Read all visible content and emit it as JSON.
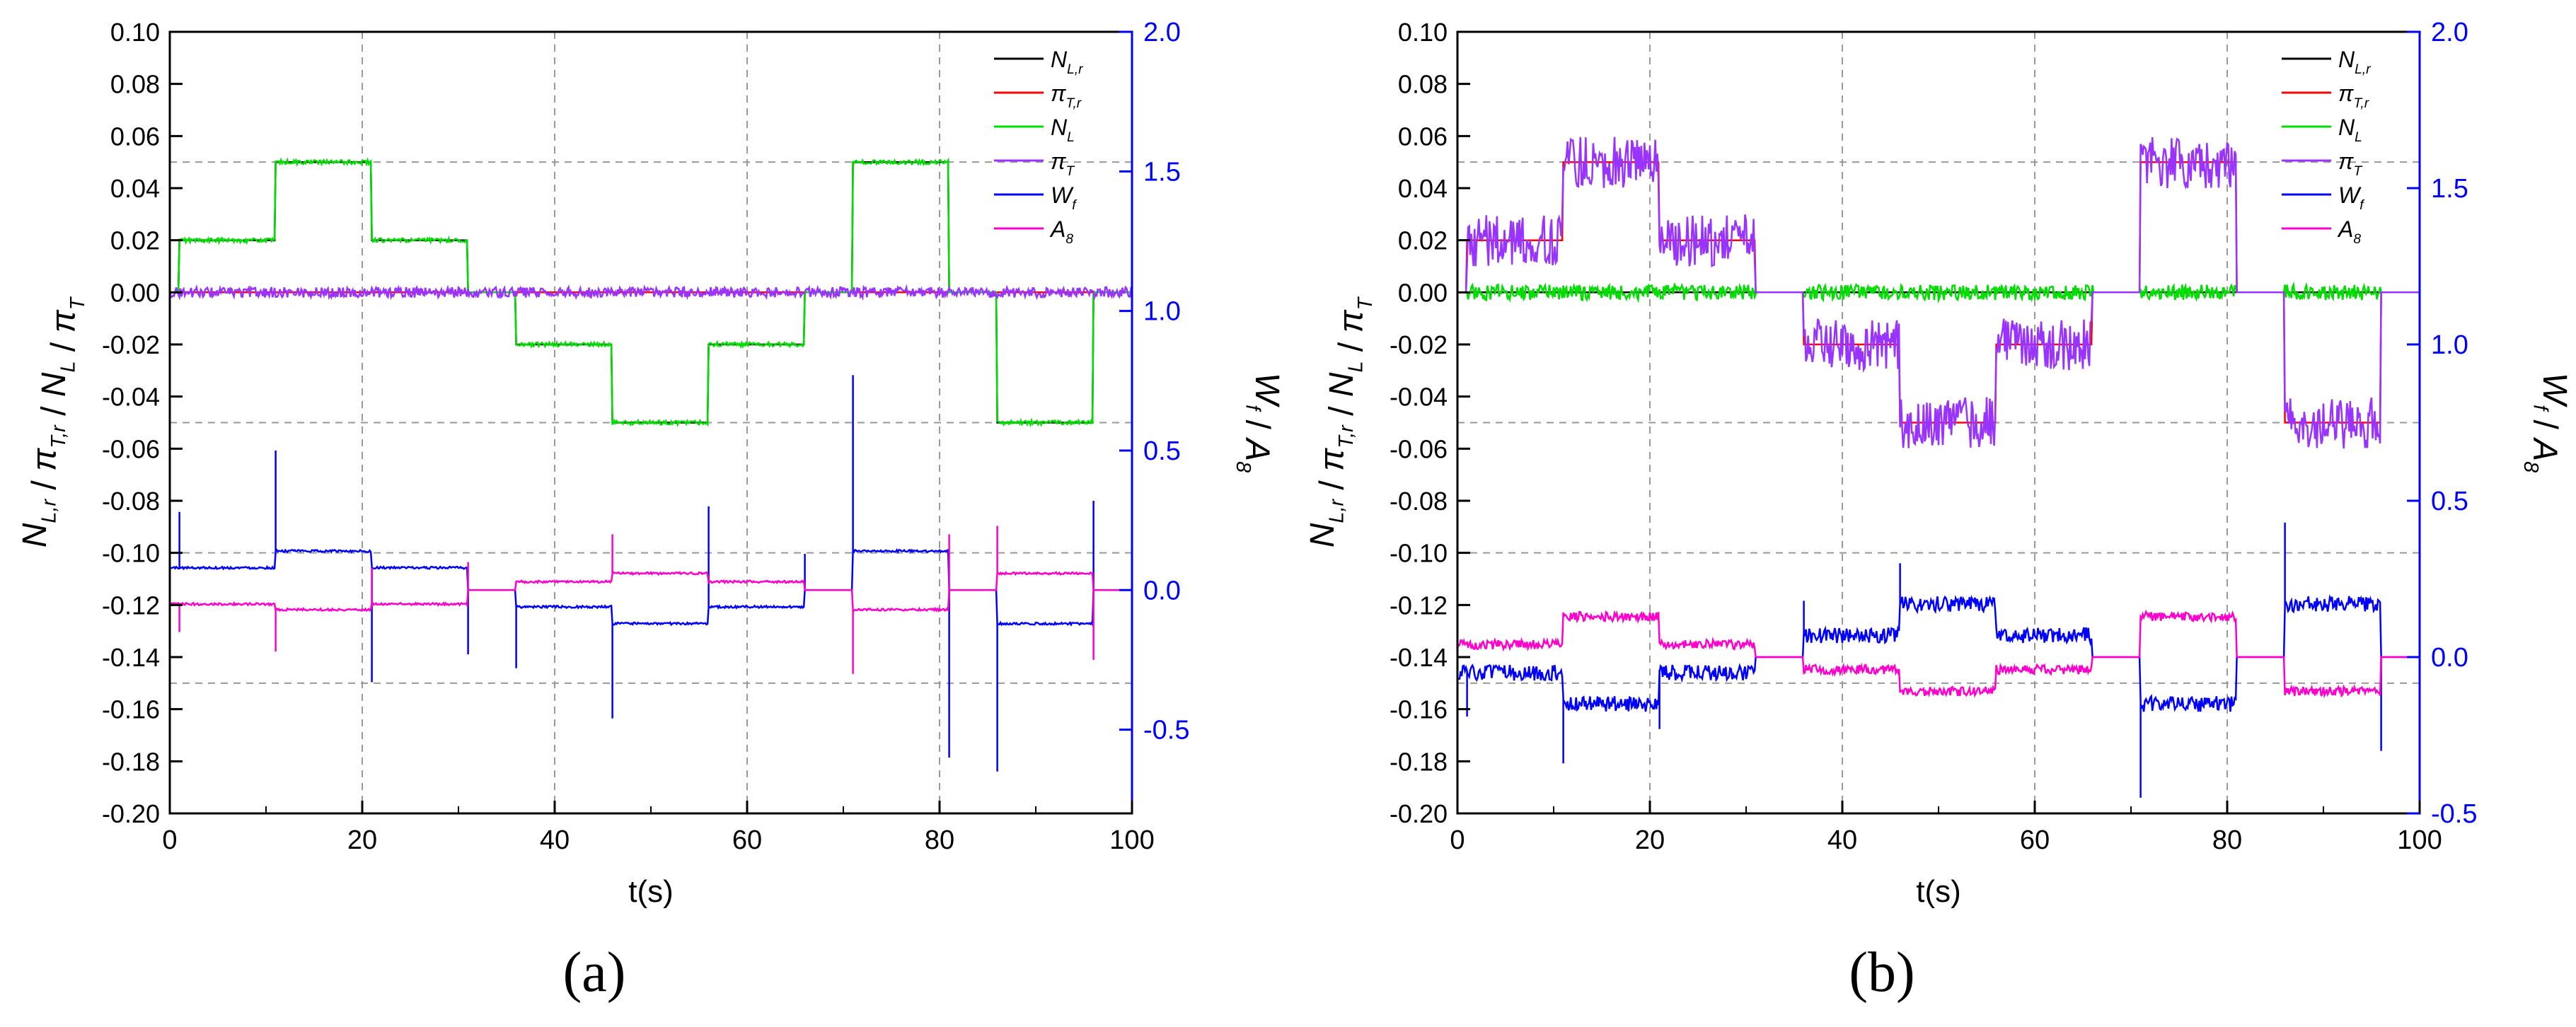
{
  "chart_data": [
    {
      "type": "line",
      "panel": "(a)",
      "xlabel": "t(s)",
      "ylabel_left": "N_L,r / π_T,r / N_L / π_T",
      "ylabel_right": "W_f / A_8",
      "xlim": [
        0,
        100
      ],
      "ylim_left": [
        -0.2,
        0.1
      ],
      "ylim_right": [
        -0.8,
        2.0
      ],
      "x_ticks": [
        "0",
        "20",
        "40",
        "60",
        "80",
        "100"
      ],
      "y_ticks_left": [
        "0.10",
        "0.08",
        "0.06",
        "0.04",
        "0.02",
        "0.00",
        "-0.02",
        "-0.04",
        "-0.06",
        "-0.08",
        "-0.10",
        "-0.12",
        "-0.14",
        "-0.16",
        "-0.18",
        "-0.20"
      ],
      "y_ticks_right": [
        "2.0",
        "1.5",
        "1.0",
        "0.5",
        "0.0",
        "-0.5"
      ],
      "grid": true,
      "legend_position": "top-right",
      "series": [
        {
          "name": "N_L,r",
          "axis": "left",
          "color": "#000000",
          "noise": 0,
          "steps": [
            [
              0,
              0
            ],
            [
              1,
              0.02
            ],
            [
              11,
              0.05
            ],
            [
              21,
              0.02
            ],
            [
              31,
              0
            ],
            [
              36,
              -0.02
            ],
            [
              46,
              -0.05
            ],
            [
              56,
              -0.02
            ],
            [
              66,
              0
            ],
            [
              71,
              0.05
            ],
            [
              81,
              0
            ],
            [
              86,
              -0.05
            ],
            [
              96,
              0
            ]
          ]
        },
        {
          "name": "π_T,r",
          "axis": "left",
          "color": "#ff0000",
          "noise": 0,
          "steps": [
            [
              0,
              0
            ],
            [
              100,
              0
            ]
          ]
        },
        {
          "name": "N_L",
          "axis": "left",
          "color": "#00dd00",
          "noise": 0.0008,
          "steps": [
            [
              0,
              0
            ],
            [
              1,
              0.02
            ],
            [
              11,
              0.05
            ],
            [
              21,
              0.02
            ],
            [
              31,
              0
            ],
            [
              36,
              -0.02
            ],
            [
              46,
              -0.05
            ],
            [
              56,
              -0.02
            ],
            [
              66,
              0
            ],
            [
              71,
              0.05
            ],
            [
              81,
              0
            ],
            [
              86,
              -0.05
            ],
            [
              96,
              0
            ]
          ]
        },
        {
          "name": "π_T",
          "axis": "left",
          "color": "#9933ff",
          "noise": 0.002,
          "steps": [
            [
              0,
              0
            ],
            [
              100,
              0
            ]
          ]
        },
        {
          "name": "W_f",
          "axis": "right",
          "color": "#0000ff",
          "noise": 0.004,
          "steps": [
            [
              0,
              0.08
            ],
            [
              11,
              0.14
            ],
            [
              21,
              0.08
            ],
            [
              31,
              0
            ],
            [
              36,
              -0.06
            ],
            [
              46,
              -0.12
            ],
            [
              56,
              -0.06
            ],
            [
              66,
              0
            ],
            [
              71,
              0.14
            ],
            [
              81,
              0
            ],
            [
              86,
              -0.12
            ],
            [
              96,
              0
            ]
          ],
          "spikes": [
            [
              1,
              0.28
            ],
            [
              11,
              0.5
            ],
            [
              21,
              -0.33
            ],
            [
              31,
              -0.23
            ],
            [
              36,
              -0.28
            ],
            [
              46,
              -0.46
            ],
            [
              56,
              0.3
            ],
            [
              66,
              0.13
            ],
            [
              71,
              0.77
            ],
            [
              81,
              -0.6
            ],
            [
              86,
              -0.65
            ],
            [
              96,
              0.32
            ]
          ]
        },
        {
          "name": "A_8",
          "axis": "right",
          "color": "#ff00cc",
          "noise": 0.004,
          "steps": [
            [
              0,
              -0.05
            ],
            [
              11,
              -0.07
            ],
            [
              21,
              -0.05
            ],
            [
              31,
              0
            ],
            [
              36,
              0.03
            ],
            [
              46,
              0.06
            ],
            [
              56,
              0.03
            ],
            [
              66,
              0
            ],
            [
              71,
              -0.07
            ],
            [
              81,
              0
            ],
            [
              86,
              0.06
            ],
            [
              96,
              0
            ]
          ],
          "spikes": [
            [
              1,
              -0.15
            ],
            [
              11,
              -0.22
            ],
            [
              21,
              0.08
            ],
            [
              31,
              0.1
            ],
            [
              46,
              0.2
            ],
            [
              71,
              -0.3
            ],
            [
              81,
              0.2
            ],
            [
              86,
              0.23
            ],
            [
              96,
              -0.25
            ]
          ]
        }
      ]
    },
    {
      "type": "line",
      "panel": "(b)",
      "xlabel": "t(s)",
      "ylabel_left": "N_L,r / π_T,r / N_L / π_T",
      "ylabel_right": "W_f / A_8",
      "xlim": [
        0,
        100
      ],
      "ylim_left": [
        -0.2,
        0.1
      ],
      "ylim_right": [
        -0.5,
        2.0
      ],
      "x_ticks": [
        "0",
        "20",
        "40",
        "60",
        "80",
        "100"
      ],
      "y_ticks_left": [
        "0.10",
        "0.08",
        "0.06",
        "0.04",
        "0.02",
        "0.00",
        "-0.02",
        "-0.04",
        "-0.06",
        "-0.08",
        "-0.10",
        "-0.12",
        "-0.14",
        "-0.16",
        "-0.18",
        "-0.20"
      ],
      "y_ticks_right": [
        "2.0",
        "1.5",
        "1.0",
        "0.5",
        "0.0",
        "-0.5"
      ],
      "grid": true,
      "legend_position": "top-right",
      "series": [
        {
          "name": "N_L,r",
          "axis": "left",
          "color": "#000000",
          "noise": 0,
          "steps": [
            [
              0,
              0
            ],
            [
              100,
              0
            ]
          ]
        },
        {
          "name": "π_T,r",
          "axis": "left",
          "color": "#ff0000",
          "noise": 0,
          "steps": [
            [
              0,
              0
            ],
            [
              1,
              0.02
            ],
            [
              11,
              0.05
            ],
            [
              21,
              0.02
            ],
            [
              31,
              0
            ],
            [
              36,
              -0.02
            ],
            [
              46,
              -0.05
            ],
            [
              56,
              -0.02
            ],
            [
              66,
              0
            ],
            [
              71,
              0.05
            ],
            [
              81,
              0
            ],
            [
              86,
              -0.05
            ],
            [
              96,
              0
            ]
          ]
        },
        {
          "name": "N_L",
          "axis": "left",
          "color": "#00dd00",
          "noise": 0.003,
          "steps": [
            [
              0,
              0
            ],
            [
              100,
              0
            ]
          ]
        },
        {
          "name": "π_T",
          "axis": "left",
          "color": "#9933ff",
          "noise": 0.01,
          "steps": [
            [
              0,
              0
            ],
            [
              1,
              0.02
            ],
            [
              11,
              0.05
            ],
            [
              21,
              0.02
            ],
            [
              31,
              0
            ],
            [
              36,
              -0.02
            ],
            [
              46,
              -0.05
            ],
            [
              56,
              -0.02
            ],
            [
              66,
              0
            ],
            [
              71,
              0.05
            ],
            [
              81,
              0
            ],
            [
              86,
              -0.05
            ],
            [
              96,
              0
            ]
          ]
        },
        {
          "name": "W_f",
          "axis": "right",
          "color": "#0000ff",
          "noise": 0.025,
          "steps": [
            [
              0,
              -0.05
            ],
            [
              11,
              -0.15
            ],
            [
              21,
              -0.05
            ],
            [
              31,
              0
            ],
            [
              36,
              0.07
            ],
            [
              46,
              0.17
            ],
            [
              56,
              0.07
            ],
            [
              66,
              0
            ],
            [
              71,
              -0.15
            ],
            [
              81,
              0
            ],
            [
              86,
              0.17
            ],
            [
              96,
              0
            ]
          ],
          "spikes": [
            [
              1,
              -0.19
            ],
            [
              11,
              -0.34
            ],
            [
              21,
              -0.23
            ],
            [
              36,
              0.18
            ],
            [
              46,
              0.3
            ],
            [
              71,
              -0.45
            ],
            [
              86,
              0.43
            ],
            [
              96,
              -0.3
            ]
          ]
        },
        {
          "name": "A_8",
          "axis": "right",
          "color": "#ff00cc",
          "noise": 0.015,
          "steps": [
            [
              0,
              0.04
            ],
            [
              11,
              0.13
            ],
            [
              21,
              0.04
            ],
            [
              31,
              0
            ],
            [
              36,
              -0.04
            ],
            [
              46,
              -0.11
            ],
            [
              56,
              -0.04
            ],
            [
              66,
              0
            ],
            [
              71,
              0.13
            ],
            [
              81,
              0
            ],
            [
              86,
              -0.11
            ],
            [
              96,
              0
            ]
          ]
        }
      ]
    }
  ]
}
